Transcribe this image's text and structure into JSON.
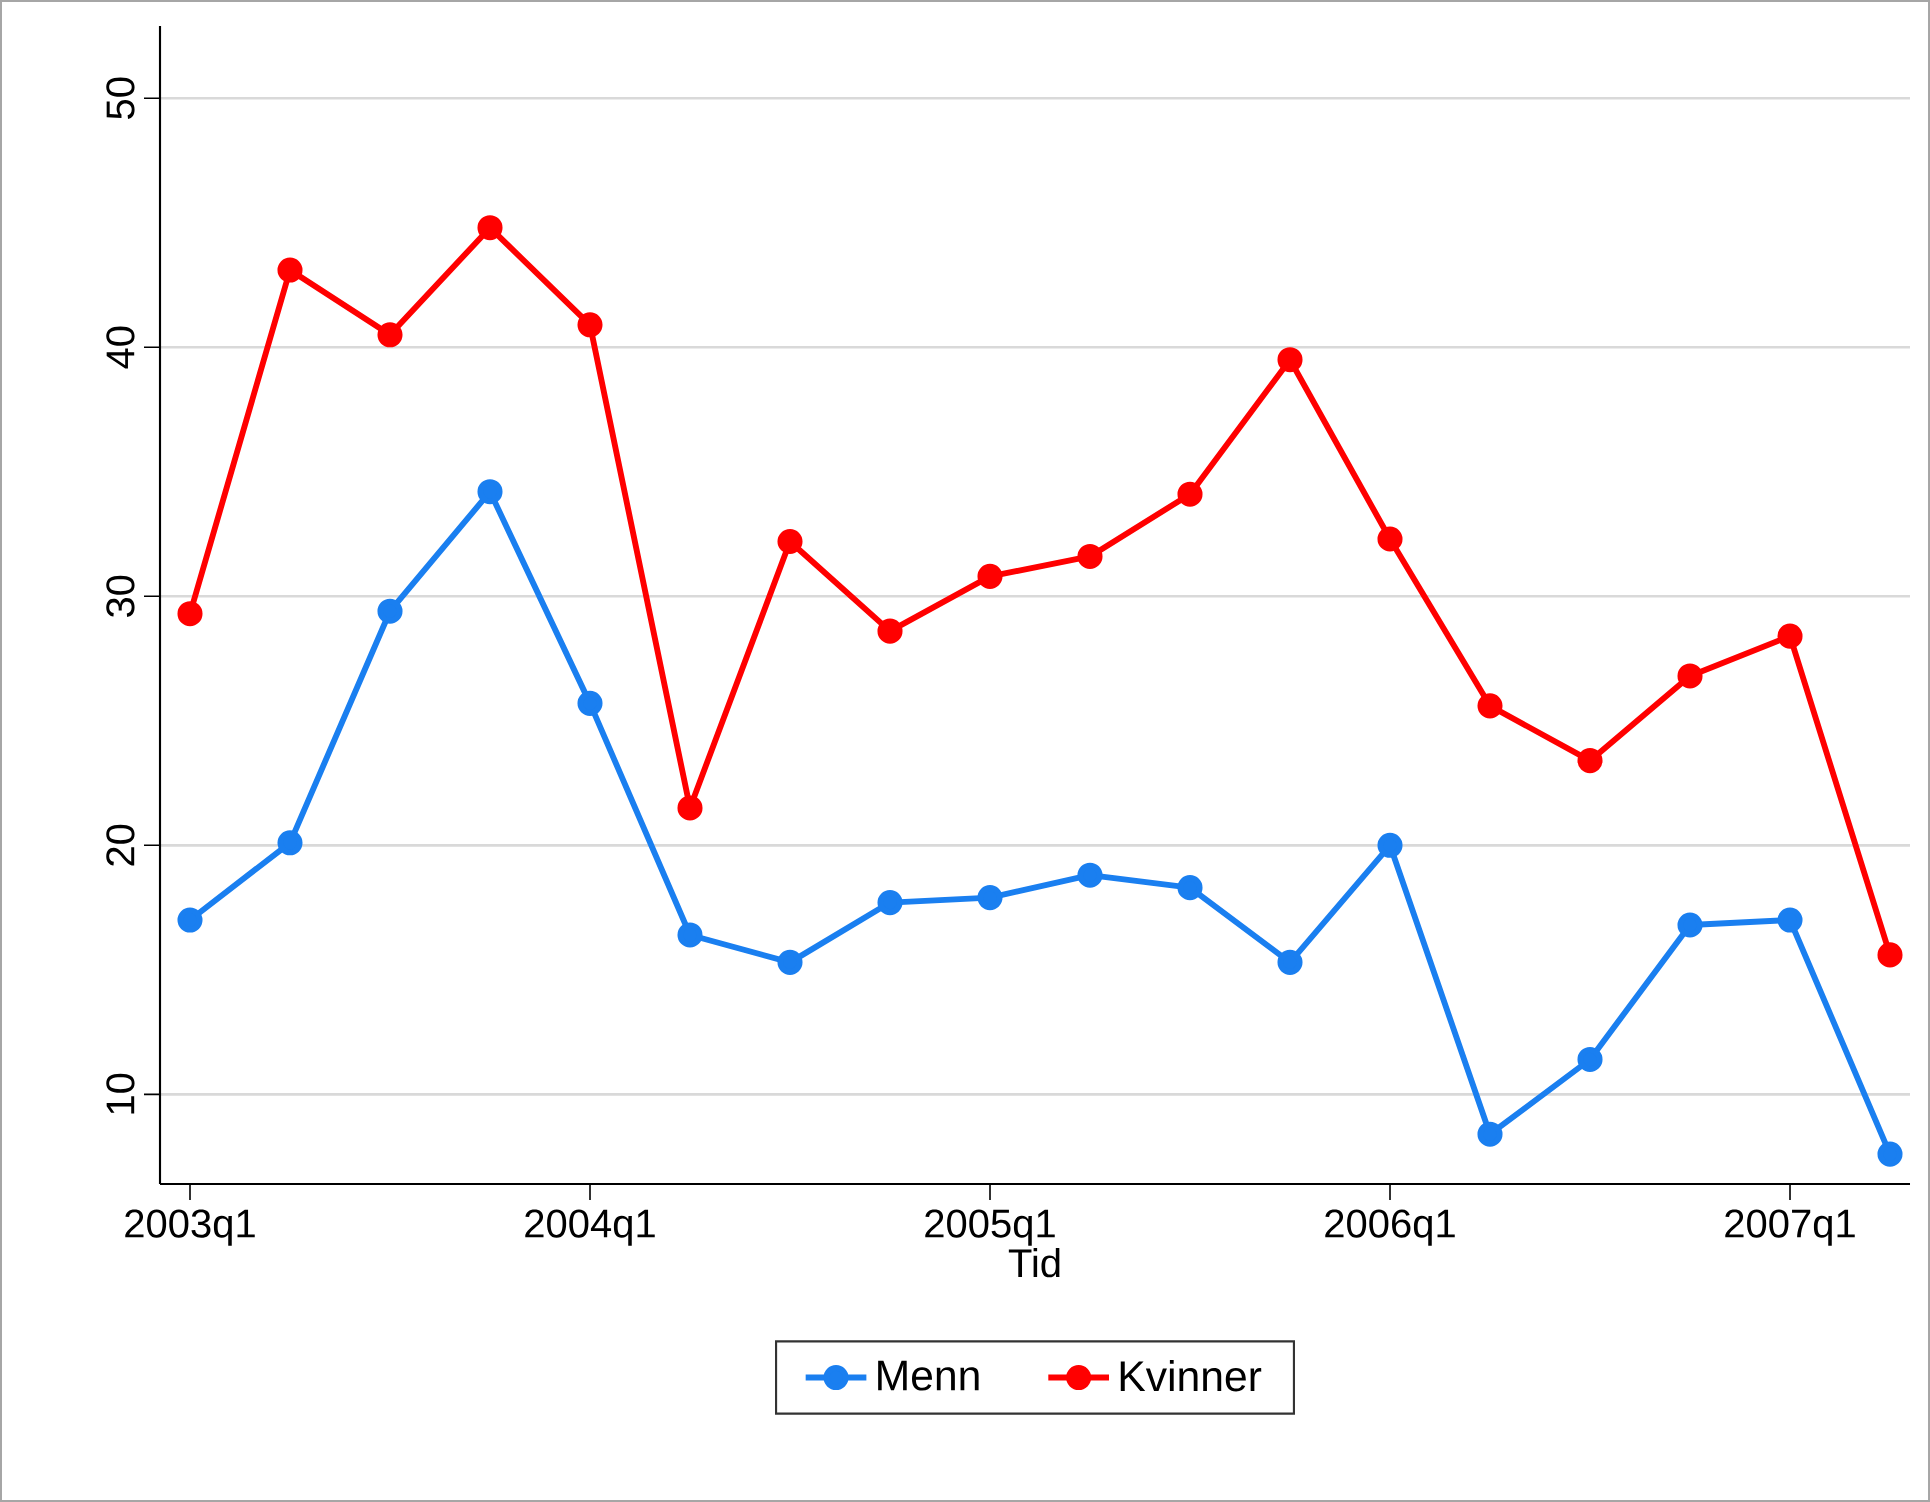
{
  "chart_data": {
    "type": "line",
    "xlabel": "Tid",
    "categories": [
      "2003q1",
      null,
      null,
      null,
      "2004q1",
      null,
      null,
      null,
      "2005q1",
      null,
      null,
      null,
      "2006q1",
      null,
      null,
      null,
      "2007q1",
      null
    ],
    "ylim": [
      6.4,
      52.9
    ],
    "yticks": [
      10,
      20,
      30,
      40,
      50
    ],
    "grid": "y",
    "legend": "bottom",
    "marker": "circle",
    "line_style": "solid",
    "series": [
      {
        "name": "Menn",
        "color": "#1a7ff0",
        "values": [
          17.0,
          20.1,
          29.4,
          34.2,
          25.7,
          16.4,
          15.3,
          17.7,
          17.9,
          18.8,
          18.3,
          15.3,
          20.0,
          8.4,
          11.4,
          16.8,
          17.0,
          7.6
        ]
      },
      {
        "name": "Kvinner",
        "color": "#ff0000",
        "values": [
          29.3,
          43.1,
          40.5,
          44.8,
          40.9,
          21.5,
          32.2,
          28.6,
          30.8,
          31.6,
          34.1,
          39.5,
          32.3,
          25.6,
          23.4,
          26.8,
          28.4,
          15.6
        ]
      }
    ]
  }
}
